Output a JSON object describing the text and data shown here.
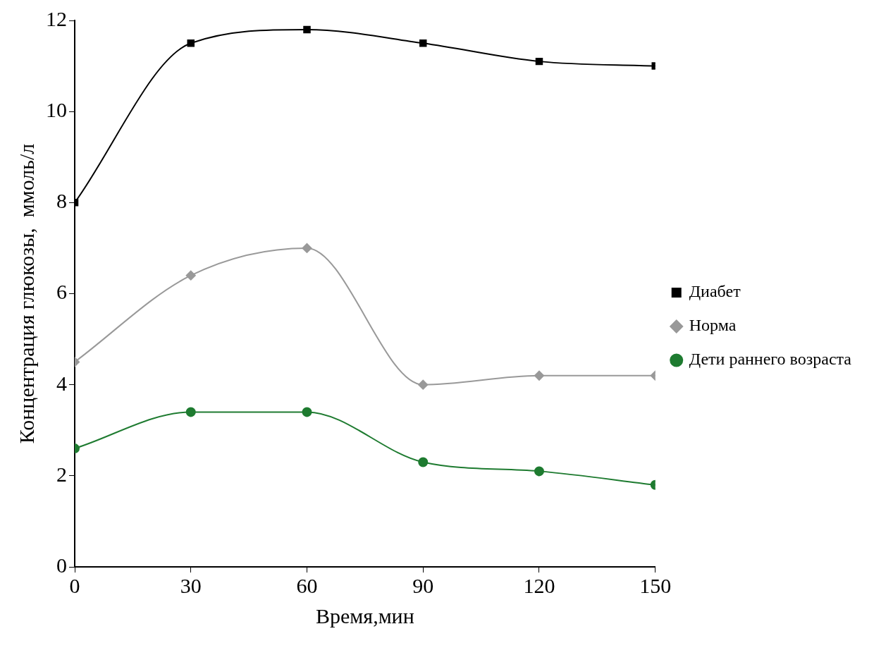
{
  "chart_data": {
    "type": "line",
    "xlabel": "Время,мин",
    "ylabel": "Концентрация глюкозы,  ммоль/л",
    "x": [
      0,
      30,
      60,
      90,
      120,
      150
    ],
    "xlim": [
      0,
      150
    ],
    "xticks": [
      0,
      30,
      60,
      90,
      120,
      150
    ],
    "ylim": [
      0,
      12
    ],
    "yticks": [
      0,
      2,
      4,
      6,
      8,
      10,
      12
    ],
    "grid": false,
    "legend": "right",
    "series": [
      {
        "name": "Диабет",
        "color": "#000000",
        "marker": "square",
        "values": [
          8.0,
          11.5,
          11.8,
          11.5,
          11.1,
          11.0
        ]
      },
      {
        "name": "Норма",
        "color": "#999999",
        "marker": "diamond",
        "values": [
          4.5,
          6.4,
          7.0,
          4.0,
          4.2,
          4.2
        ]
      },
      {
        "name": "Дети раннего возраста",
        "color": "#1e7b30",
        "marker": "circle",
        "values": [
          2.6,
          3.4,
          3.4,
          2.3,
          2.1,
          1.8
        ]
      }
    ]
  }
}
